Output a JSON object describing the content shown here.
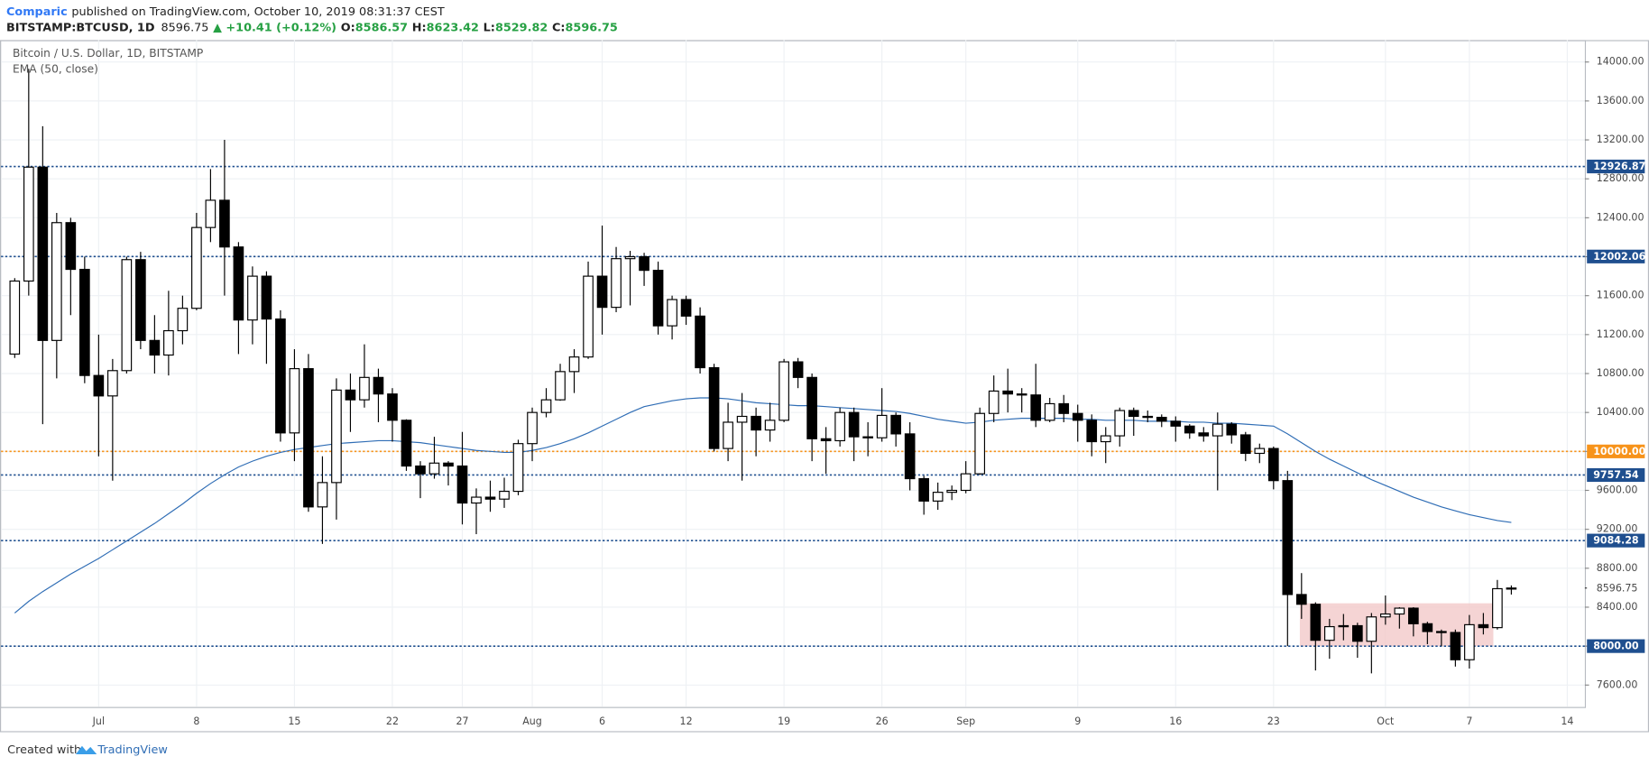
{
  "header": {
    "author": "Comparic",
    "published": "published on TradingView.com, October 10, 2019 08:31:37 CEST",
    "symbol": "BITSTAMP:BTCUSD, 1D",
    "last": "8596.75",
    "change": "▲ +10.41 (+0.12%)",
    "o_label": "O:",
    "o": "8586.57",
    "h_label": "H:",
    "h": "8623.42",
    "l_label": "L:",
    "l": "8529.82",
    "c_label": "C:",
    "c": "8596.75"
  },
  "footer": {
    "created": "Created with",
    "brand": "TradingView"
  },
  "chart_data": {
    "type": "candlestick",
    "title": "Bitcoin / U.S. Dollar, 1D, BITSTAMP",
    "up_color": "#ffffff",
    "down_color": "#000000",
    "border_color": "#000000",
    "categories": [
      null,
      null,
      null,
      null,
      null,
      null,
      "Jul",
      null,
      null,
      null,
      null,
      null,
      null,
      "8",
      null,
      null,
      null,
      null,
      null,
      null,
      "15",
      null,
      null,
      null,
      null,
      null,
      null,
      "22",
      null,
      null,
      null,
      null,
      "27",
      null,
      null,
      null,
      null,
      "Aug",
      null,
      null,
      null,
      null,
      "6",
      null,
      null,
      null,
      null,
      null,
      "12",
      null,
      null,
      null,
      null,
      null,
      null,
      "19",
      null,
      null,
      null,
      null,
      null,
      null,
      "26",
      null,
      null,
      null,
      null,
      null,
      "Sep",
      null,
      null,
      null,
      null,
      null,
      null,
      null,
      "9",
      null,
      null,
      null,
      null,
      null,
      null,
      "16",
      null,
      null,
      null,
      null,
      null,
      null,
      "23",
      null,
      null,
      null,
      null,
      null,
      null,
      null,
      "Oct",
      null,
      null,
      null,
      null,
      null,
      "7",
      null,
      null,
      null,
      null,
      null,
      null,
      "14"
    ],
    "open": [
      11000,
      11750,
      12920,
      11140,
      12350,
      11870,
      10780,
      10570,
      10830,
      11970,
      11140,
      10990,
      11240,
      11470,
      12300,
      12580,
      12100,
      11350,
      11800,
      11360,
      10190,
      10850,
      9430,
      9680,
      10630,
      10530,
      10760,
      10590,
      10320,
      9850,
      9770,
      9880,
      9850,
      9470,
      9530,
      9510,
      9590,
      10080,
      10400,
      10530,
      10820,
      10970,
      11800,
      11480,
      11980,
      12000,
      11860,
      11290,
      11560,
      11390,
      10860,
      10030,
      10300,
      10360,
      10220,
      10320,
      10920,
      10760,
      10130,
      10110,
      10400,
      10150,
      10140,
      10370,
      10180,
      9720,
      9490,
      9580,
      9600,
      9770,
      10390,
      10620,
      10590,
      10580,
      10320,
      10490,
      10390,
      10320,
      10100,
      10160,
      10420,
      10360,
      10350,
      10310,
      10260,
      10190,
      10160,
      10280,
      10170,
      9980,
      10030,
      9700,
      8530,
      8430,
      8060,
      8200,
      8210,
      8050,
      8300,
      8330,
      8390,
      8230,
      8150,
      8140,
      7860,
      8220,
      8190,
      8586.57,
      null,
      null,
      null,
      null
    ],
    "high": [
      11780,
      13930,
      13340,
      12450,
      12400,
      12000,
      11200,
      10950,
      12000,
      12050,
      11400,
      11650,
      11600,
      12450,
      12900,
      13200,
      12150,
      11900,
      11850,
      11450,
      11050,
      11000,
      9950,
      10750,
      10800,
      11100,
      10850,
      10650,
      10330,
      9900,
      10150,
      9900,
      10200,
      9620,
      9700,
      9730,
      10120,
      10450,
      10650,
      10900,
      11050,
      11950,
      12320,
      12100,
      12060,
      12040,
      11950,
      11600,
      11600,
      11480,
      10900,
      10500,
      10600,
      10450,
      10500,
      10950,
      10960,
      10800,
      10250,
      10450,
      10450,
      10300,
      10650,
      10400,
      10300,
      9750,
      9680,
      9650,
      9900,
      10450,
      10780,
      10850,
      10650,
      10900,
      10550,
      10580,
      10480,
      10380,
      10250,
      10450,
      10450,
      10420,
      10380,
      10360,
      10280,
      10250,
      10400,
      10300,
      10200,
      10080,
      10050,
      9800,
      8750,
      8450,
      8280,
      8330,
      8240,
      8340,
      8520,
      8400,
      8400,
      8250,
      8170,
      8170,
      8320,
      8340,
      8680,
      8623.42,
      null,
      null,
      null,
      null
    ],
    "low": [
      10960,
      11600,
      10280,
      10750,
      11400,
      10700,
      9950,
      9700,
      10800,
      11050,
      10800,
      10780,
      11100,
      11450,
      12150,
      11600,
      11000,
      11100,
      10900,
      10100,
      9900,
      9380,
      9050,
      9300,
      10200,
      10450,
      10300,
      10100,
      9800,
      9520,
      9720,
      9650,
      9250,
      9150,
      9380,
      9420,
      9550,
      9900,
      10350,
      10520,
      10600,
      10950,
      11200,
      11430,
      11500,
      11700,
      11200,
      11150,
      11300,
      10800,
      10000,
      9900,
      9700,
      9950,
      10100,
      10300,
      10650,
      9900,
      9770,
      10050,
      9900,
      9950,
      10100,
      10050,
      9600,
      9350,
      9400,
      9500,
      9570,
      9760,
      10300,
      10400,
      10400,
      10250,
      10300,
      10300,
      10100,
      9950,
      9880,
      10050,
      10160,
      10300,
      10250,
      10100,
      10130,
      10100,
      9600,
      10080,
      9900,
      9880,
      9610,
      8000,
      8280,
      7750,
      7870,
      8060,
      7880,
      7720,
      8220,
      8180,
      8100,
      8020,
      8000,
      7790,
      7770,
      8120,
      8170,
      8529.82,
      null,
      null,
      null,
      null
    ],
    "close": [
      11750,
      12920,
      11140,
      12350,
      11870,
      10780,
      10570,
      10830,
      11970,
      11140,
      10990,
      11240,
      11470,
      12300,
      12580,
      12100,
      11350,
      11800,
      11360,
      10190,
      10850,
      9430,
      9680,
      10630,
      10530,
      10760,
      10590,
      10320,
      9850,
      9770,
      9880,
      9850,
      9470,
      9530,
      9510,
      9590,
      10080,
      10400,
      10530,
      10820,
      10970,
      11800,
      11480,
      11980,
      12000,
      11860,
      11290,
      11560,
      11390,
      10860,
      10030,
      10300,
      10360,
      10220,
      10320,
      10920,
      10760,
      10130,
      10110,
      10400,
      10150,
      10140,
      10370,
      10180,
      9720,
      9490,
      9580,
      9600,
      9770,
      10390,
      10620,
      10590,
      10580,
      10320,
      10490,
      10390,
      10320,
      10100,
      10160,
      10420,
      10360,
      10350,
      10310,
      10260,
      10190,
      10160,
      10280,
      10170,
      9980,
      10030,
      9700,
      8530,
      8430,
      8060,
      8200,
      8210,
      8050,
      8300,
      8330,
      8390,
      8230,
      8150,
      8140,
      7860,
      8220,
      8190,
      8590,
      8596.75,
      null,
      null,
      null,
      null
    ],
    "ema": {
      "name": "EMA (50, close)",
      "color": "#2f6db5",
      "values": [
        8340,
        8460,
        8560,
        8650,
        8740,
        8820,
        8900,
        8990,
        9080,
        9170,
        9260,
        9360,
        9460,
        9570,
        9670,
        9760,
        9840,
        9900,
        9950,
        9990,
        10020,
        10040,
        10060,
        10080,
        10090,
        10100,
        10110,
        10110,
        10100,
        10090,
        10070,
        10050,
        10030,
        10010,
        10000,
        9990,
        9990,
        10010,
        10040,
        10080,
        10130,
        10190,
        10260,
        10330,
        10400,
        10460,
        10490,
        10520,
        10540,
        10550,
        10550,
        10540,
        10520,
        10500,
        10490,
        10480,
        10470,
        10470,
        10460,
        10450,
        10440,
        10430,
        10420,
        10410,
        10390,
        10360,
        10330,
        10310,
        10290,
        10300,
        10320,
        10330,
        10340,
        10340,
        10340,
        10340,
        10330,
        10330,
        10320,
        10320,
        10320,
        10310,
        10310,
        10310,
        10300,
        10300,
        10290,
        10290,
        10280,
        10270,
        10260,
        10180,
        10090,
        10000,
        9920,
        9850,
        9780,
        9710,
        9650,
        9590,
        9530,
        9480,
        9430,
        9390,
        9350,
        9320,
        9290,
        9270,
        null,
        null,
        null,
        null
      ]
    },
    "ylim": [
      7375,
      14225
    ],
    "yticks": [
      {
        "value": 7600,
        "label": "7600.00"
      },
      {
        "value": 8000,
        "label": "8000.00"
      },
      {
        "value": 8400,
        "label": "8400.00"
      },
      {
        "value": 8800,
        "label": "8800.00"
      },
      {
        "value": 9200,
        "label": "9200.00"
      },
      {
        "value": 9600,
        "label": "9600.00"
      },
      {
        "value": 10000,
        "label": "10000.00"
      },
      {
        "value": 10400,
        "label": "10400.00"
      },
      {
        "value": 10800,
        "label": "10800.00"
      },
      {
        "value": 11200,
        "label": "11200.00"
      },
      {
        "value": 11600,
        "label": "11600.00"
      },
      {
        "value": 12000,
        "label": "12000.00"
      },
      {
        "value": 12400,
        "label": "12400.00"
      },
      {
        "value": 12800,
        "label": "12800.00"
      },
      {
        "value": 13200,
        "label": "13200.00"
      },
      {
        "value": 13600,
        "label": "13600.00"
      },
      {
        "value": 14000,
        "label": "14000.00"
      }
    ],
    "grid": true,
    "levels": [
      {
        "value": 12926.87,
        "label": "12926.87",
        "color": "#1f4f8f"
      },
      {
        "value": 12002.06,
        "label": "12002.06",
        "color": "#1f4f8f"
      },
      {
        "value": 10000,
        "label": "10000.00",
        "color": "#f7931a"
      },
      {
        "value": 9757.54,
        "label": "9757.54",
        "color": "#1f4f8f"
      },
      {
        "value": 9084.28,
        "label": "9084.28",
        "color": "#1f4f8f"
      },
      {
        "value": 8000,
        "label": "8000.00",
        "color": "#1f4f8f"
      }
    ],
    "last_price": {
      "value": 8596.75,
      "label": "8596.75"
    },
    "box": {
      "ylim": [
        8000,
        8440
      ],
      "color": "#f3c9c9"
    }
  }
}
